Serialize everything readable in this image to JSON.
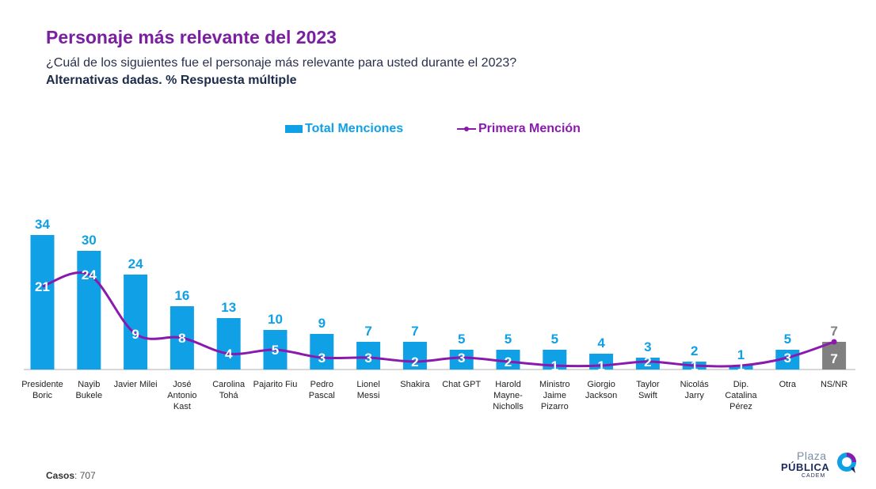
{
  "title": "Personaje más relevante del 2023",
  "subtitle": "¿Cuál de los siguientes fue el personaje más relevante para usted durante el 2023?",
  "subtitle2": "Alternativas dadas. % Respuesta múltiple",
  "footer": {
    "casos_label": "Casos",
    "casos_value": ": 707"
  },
  "logo": {
    "top": "Plaza",
    "middle": "PÚBLICA",
    "bottom": "CADEM"
  },
  "colors": {
    "bars": "#0FA0E6",
    "line": "#8A1AAE",
    "nsnr_bar": "#808080",
    "title": "#7B1FA2"
  },
  "chart_data": {
    "type": "bar",
    "categories": [
      [
        "Presidente",
        "Boric"
      ],
      [
        "Nayib",
        "Bukele"
      ],
      [
        "Javier Milei"
      ],
      [
        "José",
        "Antonio",
        "Kast"
      ],
      [
        "Carolina",
        "Tohá"
      ],
      [
        "Pajarito Fiu"
      ],
      [
        "Pedro",
        "Pascal"
      ],
      [
        "Lionel",
        "Messi"
      ],
      [
        "Shakira"
      ],
      [
        "Chat GPT"
      ],
      [
        "Harold",
        "Mayne-",
        "Nicholls"
      ],
      [
        "Ministro",
        "Jaime",
        "Pizarro"
      ],
      [
        "Giorgio",
        "Jackson"
      ],
      [
        "Taylor",
        "Swift"
      ],
      [
        "Nicolás",
        "Jarry"
      ],
      [
        "Dip.",
        "Catalina",
        "Pérez"
      ],
      [
        "Otra"
      ],
      [
        "NS/NR"
      ]
    ],
    "series": [
      {
        "name": "Total Menciones",
        "type": "bar",
        "values": [
          34,
          30,
          24,
          16,
          13,
          10,
          9,
          7,
          7,
          5,
          5,
          5,
          4,
          3,
          2,
          1,
          5,
          7
        ]
      },
      {
        "name": "Primera Mención",
        "type": "line",
        "values": [
          21,
          24,
          9,
          8,
          4,
          5,
          3,
          3,
          2,
          3,
          2,
          1,
          1,
          2,
          1,
          1,
          3,
          7
        ]
      }
    ],
    "ylim": [
      0,
      34
    ],
    "legend": "top-center",
    "grid": false
  }
}
